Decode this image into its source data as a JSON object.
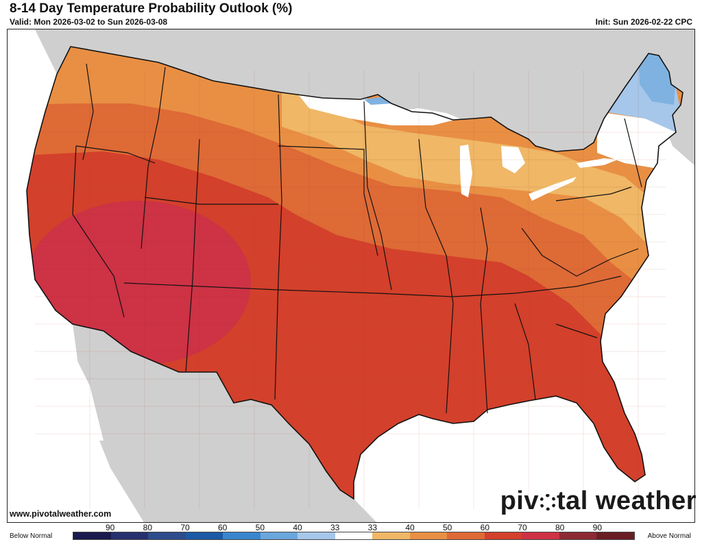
{
  "header": {
    "title": "8-14 Day Temperature Probability Outlook (%)",
    "valid": "Valid: Mon 2026-03-02 to Sun 2026-03-08",
    "init": "Init: Sun 2026-02-22 CPC"
  },
  "footer": {
    "site": "www.pivotalweather.com",
    "logo_before": "piv",
    "logo_after": "tal weather"
  },
  "legend": {
    "below_label": "Below Normal",
    "above_label": "Above Normal",
    "tick_labels": [
      "90",
      "80",
      "70",
      "60",
      "50",
      "40",
      "33",
      "33",
      "40",
      "50",
      "60",
      "70",
      "80",
      "90"
    ],
    "colors": [
      "#1b1a4d",
      "#27306e",
      "#2e4b8c",
      "#1c5aa6",
      "#3a86cc",
      "#6aa7dd",
      "#a6c7ea",
      "#ffffff",
      "#efb766",
      "#e88f44",
      "#de6a36",
      "#d3402b",
      "#cd3245",
      "#8c2a33",
      "#6b1d24"
    ]
  },
  "map": {
    "region": "Contiguous United States",
    "colors": {
      "land_outside": "#cfcfcf",
      "water": "#ffffff",
      "above_80": "#cd3245",
      "above_70": "#d3402b",
      "above_60": "#de6a36",
      "above_50": "#e88f44",
      "above_40": "#efb766",
      "near_normal": "#ffffff",
      "below_40": "#7fb2e0",
      "below_33": "#a6c7ea"
    }
  }
}
